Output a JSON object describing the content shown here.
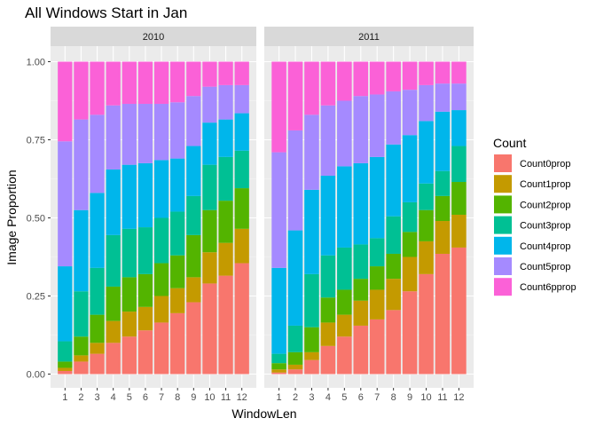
{
  "chart_data": {
    "type": "bar",
    "stacked": true,
    "title": "All Windows Start in Jan",
    "xlabel": "WindowLen",
    "ylabel": "Image Proportion",
    "ylim": [
      0,
      1
    ],
    "y_ticks": [
      "0.00",
      "0.25",
      "0.50",
      "0.75",
      "1.00"
    ],
    "grid": true,
    "legend_position": "right",
    "legend_title": "Count",
    "categories": [
      "1",
      "2",
      "3",
      "4",
      "5",
      "6",
      "7",
      "8",
      "9",
      "10",
      "11",
      "12"
    ],
    "series_names": [
      "Count0prop",
      "Count1prop",
      "Count2prop",
      "Count3prop",
      "Count4prop",
      "Count5prop",
      "Count6pprop"
    ],
    "colors": [
      "#F8766D",
      "#C49A00",
      "#53B400",
      "#00C094",
      "#00B6EB",
      "#A58AFF",
      "#FB61D7"
    ],
    "facets": [
      {
        "label": "2010",
        "cumulative_from_bottom": [
          [
            0.01,
            0.04,
            0.065,
            0.1,
            0.12,
            0.14,
            0.165,
            0.195,
            0.23,
            0.29,
            0.315,
            0.355
          ],
          [
            0.02,
            0.06,
            0.1,
            0.17,
            0.2,
            0.215,
            0.25,
            0.275,
            0.31,
            0.39,
            0.42,
            0.465
          ],
          [
            0.04,
            0.12,
            0.19,
            0.28,
            0.31,
            0.32,
            0.355,
            0.38,
            0.445,
            0.525,
            0.555,
            0.595
          ],
          [
            0.105,
            0.265,
            0.34,
            0.445,
            0.465,
            0.47,
            0.5,
            0.52,
            0.57,
            0.67,
            0.695,
            0.715
          ],
          [
            0.345,
            0.525,
            0.58,
            0.655,
            0.67,
            0.675,
            0.685,
            0.69,
            0.73,
            0.805,
            0.815,
            0.835
          ],
          [
            0.745,
            0.815,
            0.83,
            0.86,
            0.865,
            0.865,
            0.865,
            0.87,
            0.89,
            0.92,
            0.925,
            0.925
          ],
          [
            1,
            1,
            1,
            1,
            1,
            1,
            1,
            1,
            1,
            1,
            1,
            1
          ]
        ]
      },
      {
        "label": "2011",
        "cumulative_from_bottom": [
          [
            0.005,
            0.015,
            0.045,
            0.09,
            0.12,
            0.155,
            0.175,
            0.205,
            0.265,
            0.32,
            0.385,
            0.405
          ],
          [
            0.015,
            0.03,
            0.07,
            0.165,
            0.19,
            0.235,
            0.27,
            0.305,
            0.375,
            0.425,
            0.49,
            0.51
          ],
          [
            0.035,
            0.07,
            0.15,
            0.245,
            0.27,
            0.305,
            0.345,
            0.385,
            0.455,
            0.525,
            0.57,
            0.615
          ],
          [
            0.065,
            0.155,
            0.32,
            0.38,
            0.405,
            0.415,
            0.435,
            0.505,
            0.55,
            0.61,
            0.65,
            0.73
          ],
          [
            0.34,
            0.46,
            0.59,
            0.635,
            0.665,
            0.675,
            0.695,
            0.735,
            0.765,
            0.81,
            0.84,
            0.845
          ],
          [
            0.71,
            0.78,
            0.83,
            0.86,
            0.875,
            0.89,
            0.895,
            0.905,
            0.91,
            0.925,
            0.93,
            0.93
          ],
          [
            1,
            1,
            1,
            1,
            1,
            1,
            1,
            1,
            1,
            1,
            1,
            1
          ]
        ]
      }
    ]
  }
}
